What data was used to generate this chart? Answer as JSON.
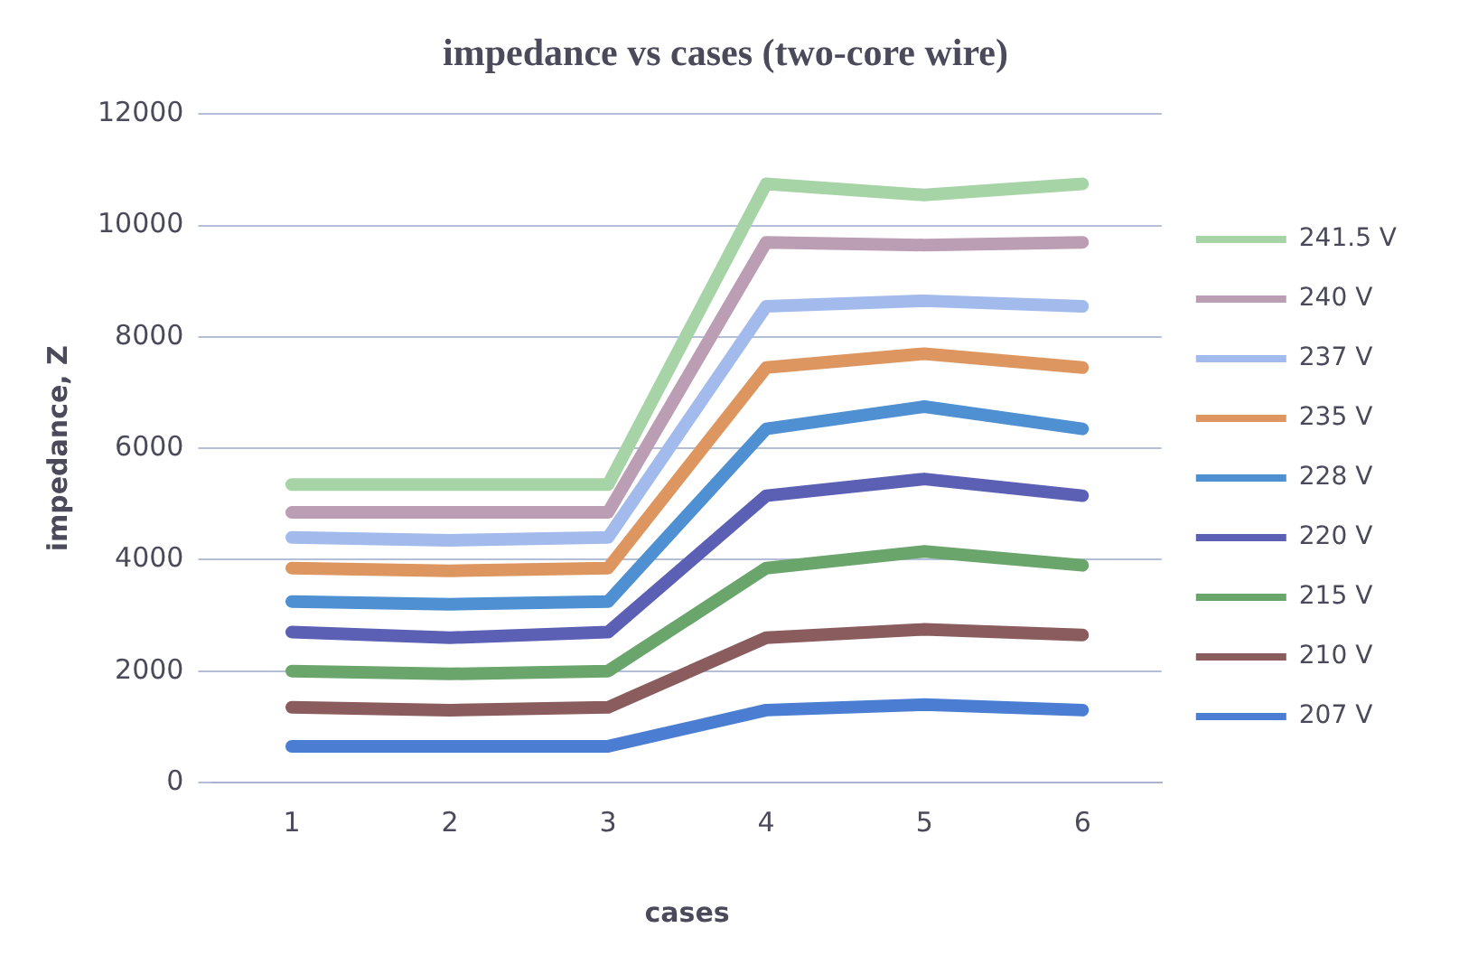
{
  "chart_data": {
    "type": "line",
    "title": "impedance vs cases (two-core wire)",
    "xlabel": "cases",
    "ylabel": "impedance, Z",
    "categories": [
      "1",
      "2",
      "3",
      "4",
      "5",
      "6"
    ],
    "series": [
      {
        "name": "241.5 V",
        "color": "#a6d4a6",
        "values": [
          5350,
          5350,
          5350,
          10750,
          10550,
          10750
        ]
      },
      {
        "name": "240 V",
        "color": "#bc9eb4",
        "values": [
          4850,
          4850,
          4850,
          9700,
          9650,
          9700
        ]
      },
      {
        "name": "237 V",
        "color": "#a3bbec",
        "values": [
          4400,
          4350,
          4400,
          8550,
          8650,
          8550
        ]
      },
      {
        "name": "235 V",
        "color": "#dd9660",
        "values": [
          3850,
          3800,
          3850,
          7450,
          7700,
          7450
        ]
      },
      {
        "name": "228 V",
        "color": "#4e90d2",
        "values": [
          3250,
          3200,
          3250,
          6350,
          6750,
          6350
        ]
      },
      {
        "name": "220 V",
        "color": "#5b60b4",
        "values": [
          2700,
          2600,
          2700,
          5150,
          5450,
          5150
        ]
      },
      {
        "name": "215 V",
        "color": "#6aa56c",
        "values": [
          2000,
          1950,
          2000,
          3850,
          4150,
          3900
        ]
      },
      {
        "name": "210 V",
        "color": "#8a5c5e",
        "values": [
          1350,
          1300,
          1350,
          2600,
          2750,
          2650
        ]
      },
      {
        "name": "207 V",
        "color": "#4b7ed2",
        "values": [
          650,
          650,
          650,
          1300,
          1400,
          1300
        ]
      }
    ],
    "ylim": [
      0,
      12000
    ],
    "yticks": [
      0,
      2000,
      4000,
      6000,
      8000,
      10000,
      12000
    ],
    "grid": "y",
    "legend": "right",
    "marker": "none",
    "line_style": "solid"
  }
}
